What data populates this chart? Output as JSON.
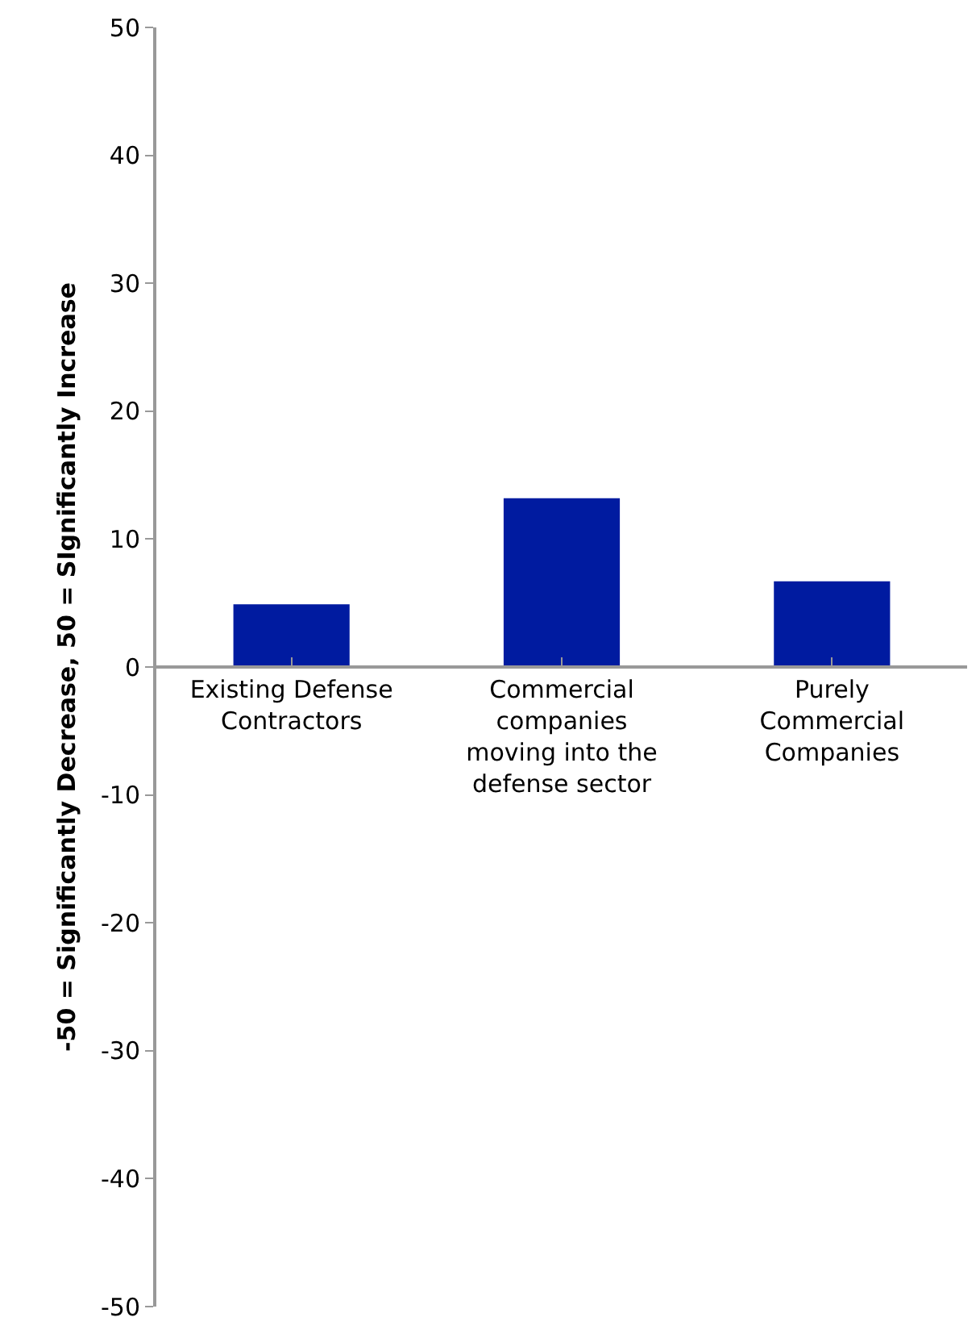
{
  "chart_data": {
    "type": "bar",
    "ylabel": "-50 = Significantly Decrease, 50 = SIgnificantly Increase",
    "categories": [
      "Existing Defense\nContractors",
      "Commercial\ncompanies\nmoving into the\ndefense sector",
      "Purely\nCommercial\nCompanies"
    ],
    "values": [
      4.9,
      13.2,
      6.7
    ],
    "color": "#001ba0",
    "ylim": [
      -50,
      50
    ],
    "yticks": [
      -50,
      -40,
      -30,
      -20,
      -10,
      0,
      10,
      20,
      30,
      40,
      50
    ]
  }
}
